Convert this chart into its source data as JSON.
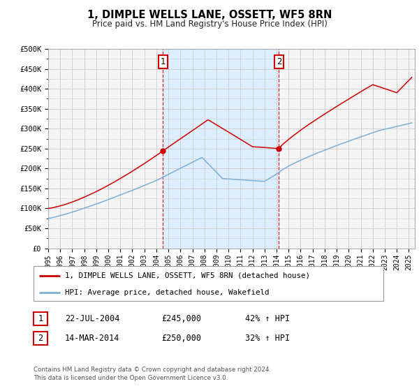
{
  "title": "1, DIMPLE WELLS LANE, OSSETT, WF5 8RN",
  "subtitle": "Price paid vs. HM Land Registry's House Price Index (HPI)",
  "ylim": [
    0,
    500000
  ],
  "yticks": [
    0,
    50000,
    100000,
    150000,
    200000,
    250000,
    300000,
    350000,
    400000,
    450000,
    500000
  ],
  "ytick_labels": [
    "£0",
    "£50K",
    "£100K",
    "£150K",
    "£200K",
    "£250K",
    "£300K",
    "£350K",
    "£400K",
    "£450K",
    "£500K"
  ],
  "xlim_start": 1995.0,
  "xlim_end": 2025.5,
  "xtick_years": [
    1995,
    1996,
    1997,
    1998,
    1999,
    2000,
    2001,
    2002,
    2003,
    2004,
    2005,
    2006,
    2007,
    2008,
    2009,
    2010,
    2011,
    2012,
    2013,
    2014,
    2015,
    2016,
    2017,
    2018,
    2019,
    2020,
    2021,
    2022,
    2023,
    2024,
    2025
  ],
  "sale1_x": 2004.55,
  "sale1_y": 245000,
  "sale1_label": "1",
  "sale1_date": "22-JUL-2004",
  "sale1_price": "£245,000",
  "sale1_hpi": "42% ↑ HPI",
  "sale2_x": 2014.2,
  "sale2_y": 250000,
  "sale2_label": "2",
  "sale2_date": "14-MAR-2014",
  "sale2_price": "£250,000",
  "sale2_hpi": "32% ↑ HPI",
  "line1_color": "#cc0000",
  "line2_color": "#7bafd4",
  "shaded_region_color": "#ddeeff",
  "grid_color": "#cccccc",
  "background_color": "#f5f5f5",
  "legend1_label": "1, DIMPLE WELLS LANE, OSSETT, WF5 8RN (detached house)",
  "legend2_label": "HPI: Average price, detached house, Wakefield",
  "footer": "Contains HM Land Registry data © Crown copyright and database right 2024.\nThis data is licensed under the Open Government Licence v3.0."
}
